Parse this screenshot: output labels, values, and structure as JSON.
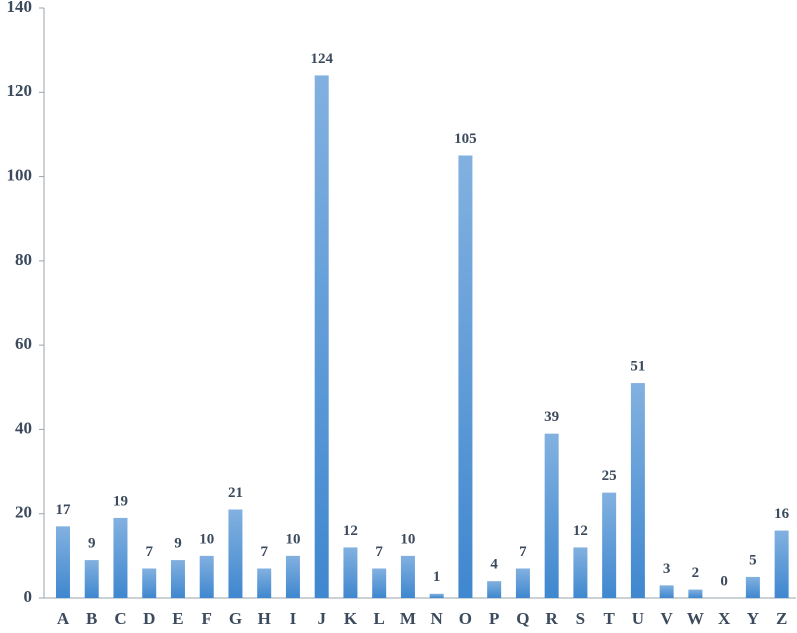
{
  "chart_data": {
    "type": "bar",
    "categories": [
      "A",
      "B",
      "C",
      "D",
      "E",
      "F",
      "G",
      "H",
      "I",
      "J",
      "K",
      "L",
      "M",
      "N",
      "O",
      "P",
      "Q",
      "R",
      "S",
      "T",
      "U",
      "V",
      "W",
      "X",
      "Y",
      "Z"
    ],
    "values": [
      17,
      9,
      19,
      7,
      9,
      10,
      21,
      7,
      10,
      124,
      12,
      7,
      10,
      1,
      105,
      4,
      7,
      39,
      12,
      25,
      51,
      3,
      2,
      0,
      5,
      16
    ],
    "color": "#3f87cf",
    "ylim": [
      0,
      140
    ],
    "yticks": [
      0,
      20,
      40,
      60,
      80,
      100,
      120,
      140
    ],
    "grid": false
  }
}
